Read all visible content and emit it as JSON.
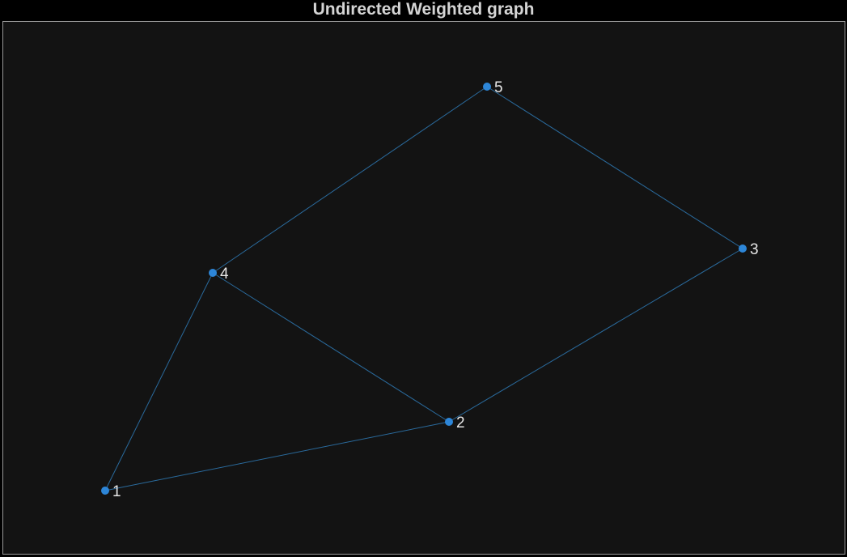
{
  "title": "Undirected Weighted graph",
  "colors": {
    "background": "#131313",
    "frame_border": "#9a9a9a",
    "title_text": "#d4d4d4",
    "node_fill": "#2d86d8",
    "edge_stroke": "#2a6a9c",
    "label_text": "#e6e6e6"
  },
  "nodes": [
    {
      "id": "1",
      "label": "1"
    },
    {
      "id": "2",
      "label": "2"
    },
    {
      "id": "3",
      "label": "3"
    },
    {
      "id": "4",
      "label": "4"
    },
    {
      "id": "5",
      "label": "5"
    }
  ],
  "edges": [
    {
      "source": "1",
      "target": "4"
    },
    {
      "source": "1",
      "target": "2"
    },
    {
      "source": "4",
      "target": "2"
    },
    {
      "source": "4",
      "target": "5"
    },
    {
      "source": "5",
      "target": "3"
    },
    {
      "source": "2",
      "target": "3"
    }
  ]
}
